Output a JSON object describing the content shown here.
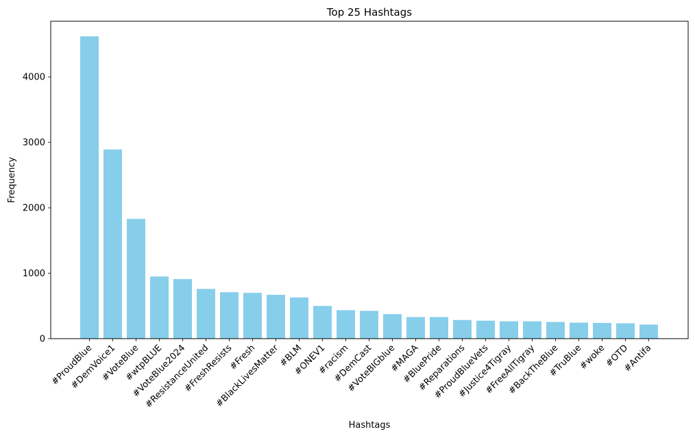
{
  "chart_data": {
    "type": "bar",
    "title": "Top 25 Hashtags",
    "xlabel": "Hashtags",
    "ylabel": "Frequency",
    "ylim": [
      0,
      4850
    ],
    "yticks": [
      0,
      1000,
      2000,
      3000,
      4000
    ],
    "categories": [
      "#ProudBlue",
      "#DemVoice1",
      "#VoteBlue",
      "#wtpBLUE",
      "#VoteBlue2024",
      "#ResistanceUnited",
      "#FreshResists",
      "#Fresh",
      "#BlackLivesMatter",
      "#BLM",
      "#ONEV1",
      "#racism",
      "#DemCast",
      "#VoteBIGblue",
      "#MAGA",
      "#BluePride",
      "#Reparations",
      "#ProudBlueVets",
      "#Justice4Tigray",
      "#FreeAllTigray",
      "#BackTheBlue",
      "#TruBlue",
      "#woke",
      "#OTD",
      "#Antifa"
    ],
    "values": [
      4620,
      2890,
      1830,
      950,
      910,
      760,
      710,
      700,
      670,
      630,
      500,
      435,
      425,
      375,
      330,
      330,
      285,
      275,
      265,
      265,
      255,
      245,
      240,
      235,
      215
    ],
    "bar_color": "#87CEEB",
    "grid": false,
    "legend": "none"
  }
}
